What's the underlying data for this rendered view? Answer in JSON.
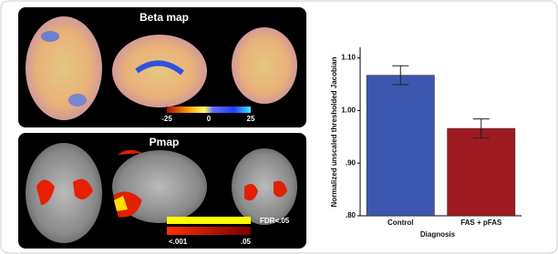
{
  "panels": {
    "beta": {
      "title": "Beta map",
      "colorbar": {
        "lim": [
          -25,
          25
        ],
        "ticks": [
          -25,
          0,
          25
        ]
      }
    },
    "pmap": {
      "title": "Pmap",
      "fdr_label": "FDR<.05",
      "scale_labels": [
        "<.001",
        ".05"
      ]
    }
  },
  "chart_data": {
    "type": "bar",
    "y_label": "Normalized unscaled thresholded Jacobian",
    "x_label": "Diagnosis",
    "categories": [
      "Control",
      "FAS + pFAS"
    ],
    "values": [
      1.067,
      0.966
    ],
    "errors": [
      0.018,
      0.018
    ],
    "colors": [
      "#3d56ad",
      "#9e1b22"
    ],
    "ylim": [
      0.8,
      1.12
    ],
    "yticks": [
      {
        "value": 0.8,
        "label": ".80"
      },
      {
        "value": 0.9,
        "label": ".90"
      },
      {
        "value": 1.0,
        "label": "1.00"
      },
      {
        "value": 1.1,
        "label": "1.10"
      }
    ]
  }
}
